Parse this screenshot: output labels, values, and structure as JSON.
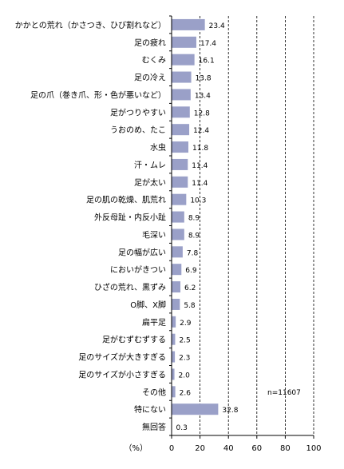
{
  "chart_data": {
    "type": "bar",
    "orientation": "horizontal",
    "categories": [
      "かかとの荒れ（かさつき、ひび割れなど）",
      "足の疲れ",
      "むくみ",
      "足の冷え",
      "足の爪（巻き爪、形・色が悪いなど）",
      "足がつりやすい",
      "うおのめ、たこ",
      "水虫",
      "汗・ムレ",
      "足が太い",
      "足の肌の乾燥、肌荒れ",
      "外反母趾・内反小趾",
      "毛深い",
      "足の幅が広い",
      "においがきつい",
      "ひざの荒れ、黒ずみ",
      "O脚、X脚",
      "扁平足",
      "足がむずむずする",
      "足のサイズが大きすぎる",
      "足のサイズが小さすぎる",
      "その他",
      "特にない",
      "無回答"
    ],
    "values": [
      23.4,
      17.4,
      16.1,
      13.8,
      13.4,
      12.8,
      12.4,
      11.8,
      11.4,
      11.4,
      10.3,
      8.9,
      8.9,
      7.8,
      6.9,
      6.2,
      5.8,
      2.9,
      2.5,
      2.3,
      2.0,
      2.6,
      32.8,
      0.3
    ],
    "value_labels": [
      "23.4",
      "17.4",
      "16.1",
      "13.8",
      "13.4",
      "12.8",
      "12.4",
      "11.8",
      "11.4",
      "11.4",
      "10.3",
      "8.9",
      "8.9",
      "7.8",
      "6.9",
      "6.2",
      "5.8",
      "2.9",
      "2.5",
      "2.3",
      "2.0",
      "2.6",
      "32.8",
      "0.3"
    ],
    "xlim": [
      0,
      100
    ],
    "xticks": [
      "0",
      "20",
      "40",
      "60",
      "80",
      "100"
    ],
    "xlabel": "（%）",
    "annotation": "n=11607",
    "grid": "vertical dashed",
    "bar_color": "#9aa0c8"
  }
}
